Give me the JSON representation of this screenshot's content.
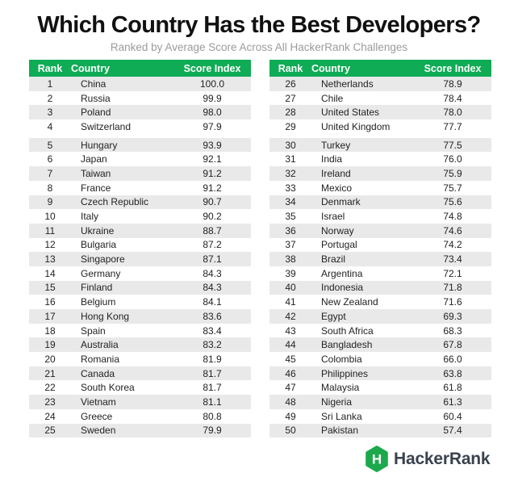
{
  "colors": {
    "page_bg": "#ffffff",
    "header_green": "#0fab55",
    "header_text": "#ffffff",
    "row_alt_gray": "#e9e9e9",
    "body_text": "#232323",
    "title_text": "#111111",
    "subtitle_text": "#9b9b9b",
    "logo_green": "#1ba94c",
    "logo_text": "#39424e"
  },
  "logo": {
    "letter": "H",
    "text": "HackerRank"
  },
  "chart_data": {
    "type": "table",
    "title": "Which Country Has the Best Developers?",
    "subtitle": "Ranked by Average Score Across All HackerRank Challenges",
    "columns": [
      "Rank",
      "Country",
      "Score Index"
    ],
    "tables": [
      {
        "rows": [
          [
            "1",
            "China",
            "100.0"
          ],
          [
            "2",
            "Russia",
            "99.9"
          ],
          [
            "3",
            "Poland",
            "98.0"
          ],
          [
            "4",
            "Switzerland",
            "97.9"
          ],
          [
            "5",
            "Hungary",
            "93.9"
          ],
          [
            "6",
            "Japan",
            "92.1"
          ],
          [
            "7",
            "Taiwan",
            "91.2"
          ],
          [
            "8",
            "France",
            "91.2"
          ],
          [
            "9",
            "Czech Republic",
            "90.7"
          ],
          [
            "10",
            "Italy",
            "90.2"
          ],
          [
            "11",
            "Ukraine",
            "88.7"
          ],
          [
            "12",
            "Bulgaria",
            "87.2"
          ],
          [
            "13",
            "Singapore",
            "87.1"
          ],
          [
            "14",
            "Germany",
            "84.3"
          ],
          [
            "15",
            "Finland",
            "84.3"
          ],
          [
            "16",
            "Belgium",
            "84.1"
          ],
          [
            "17",
            "Hong Kong",
            "83.6"
          ],
          [
            "18",
            "Spain",
            "83.4"
          ],
          [
            "19",
            "Australia",
            "83.2"
          ],
          [
            "20",
            "Romania",
            "81.9"
          ],
          [
            "21",
            "Canada",
            "81.7"
          ],
          [
            "22",
            "South Korea",
            "81.7"
          ],
          [
            "23",
            "Vietnam",
            "81.1"
          ],
          [
            "24",
            "Greece",
            "80.8"
          ],
          [
            "25",
            "Sweden",
            "79.9"
          ]
        ]
      },
      {
        "rows": [
          [
            "26",
            "Netherlands",
            "78.9"
          ],
          [
            "27",
            "Chile",
            "78.4"
          ],
          [
            "28",
            "United States",
            "78.0"
          ],
          [
            "29",
            "United Kingdom",
            "77.7"
          ],
          [
            "30",
            "Turkey",
            "77.5"
          ],
          [
            "31",
            "India",
            "76.0"
          ],
          [
            "32",
            "Ireland",
            "75.9"
          ],
          [
            "33",
            "Mexico",
            "75.7"
          ],
          [
            "34",
            "Denmark",
            "75.6"
          ],
          [
            "35",
            "Israel",
            "74.8"
          ],
          [
            "36",
            "Norway",
            "74.6"
          ],
          [
            "37",
            "Portugal",
            "74.2"
          ],
          [
            "38",
            "Brazil",
            "73.4"
          ],
          [
            "39",
            "Argentina",
            "72.1"
          ],
          [
            "40",
            "Indonesia",
            "71.8"
          ],
          [
            "41",
            "New Zealand",
            "71.6"
          ],
          [
            "42",
            "Egypt",
            "69.3"
          ],
          [
            "43",
            "South Africa",
            "68.3"
          ],
          [
            "44",
            "Bangladesh",
            "67.8"
          ],
          [
            "45",
            "Colombia",
            "66.0"
          ],
          [
            "46",
            "Philippines",
            "63.8"
          ],
          [
            "47",
            "Malaysia",
            "61.8"
          ],
          [
            "48",
            "Nigeria",
            "61.3"
          ],
          [
            "49",
            "Sri Lanka",
            "60.4"
          ],
          [
            "50",
            "Pakistan",
            "57.4"
          ]
        ]
      }
    ]
  }
}
